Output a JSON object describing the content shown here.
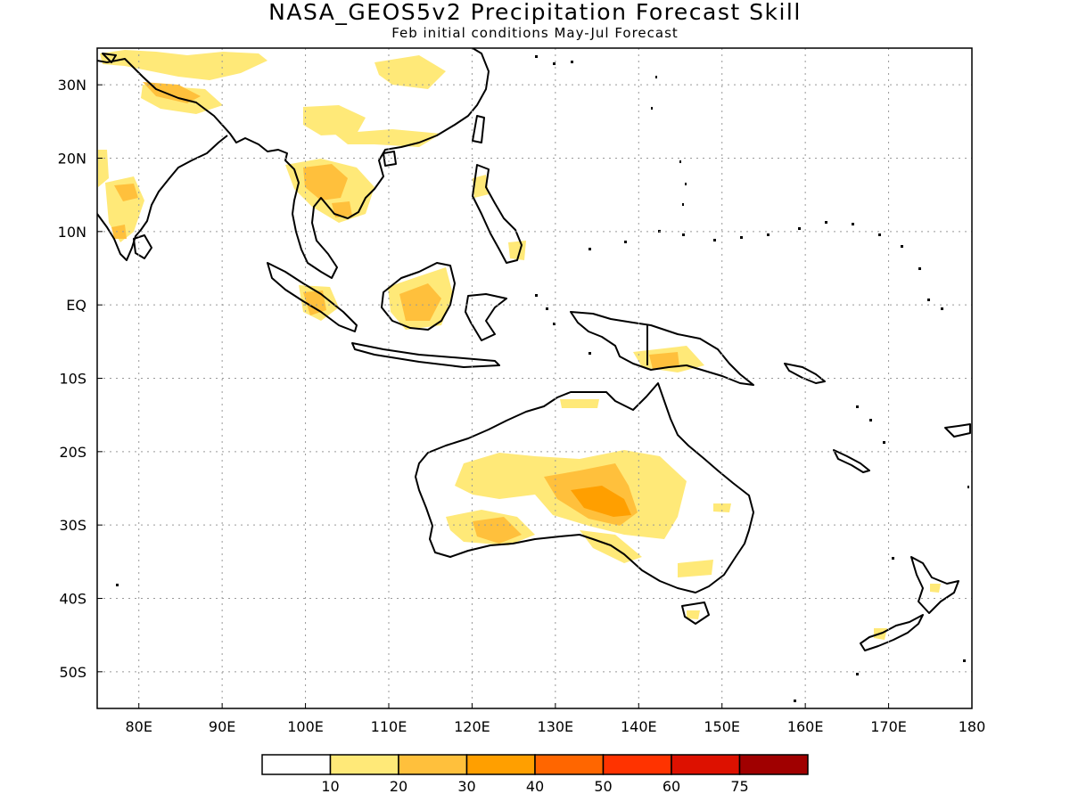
{
  "header": {
    "title": "NASA_GEOS5v2 Precipitation Forecast Skill",
    "subtitle": "Feb initial conditions  May-Jul Forecast"
  },
  "map": {
    "lon_range": [
      75,
      180
    ],
    "lat_range": [
      -55,
      35
    ],
    "lon_labels": [
      "80E",
      "90E",
      "100E",
      "110E",
      "120E",
      "130E",
      "140E",
      "150E",
      "160E",
      "170E",
      "180"
    ],
    "lat_labels": [
      "30N",
      "20N",
      "10N",
      "EQ",
      "10S",
      "20S",
      "30S",
      "40S",
      "50S"
    ],
    "grid": "dotted",
    "coastline_color": "#000000"
  },
  "legend": {
    "colors": [
      "#ffffff",
      "#ffe978",
      "#ffc03c",
      "#ff9f00",
      "#ff6600",
      "#ff3300",
      "#dd1100",
      "#a00000"
    ],
    "labels": [
      "10",
      "20",
      "30",
      "40",
      "50",
      "60",
      "75"
    ]
  }
}
